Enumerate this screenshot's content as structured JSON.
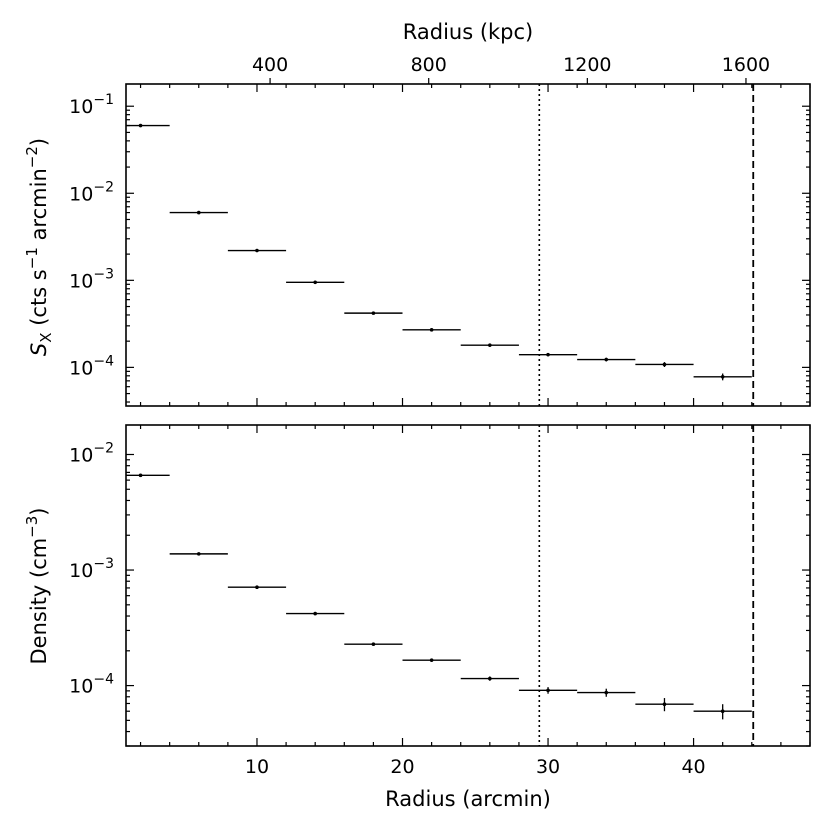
{
  "chart_data": {
    "type": "scatter",
    "x_bins_arcmin": [
      [
        1,
        4
      ],
      [
        4,
        8
      ],
      [
        8,
        12
      ],
      [
        12,
        16
      ],
      [
        16,
        20
      ],
      [
        20,
        24
      ],
      [
        24,
        28
      ],
      [
        28,
        32
      ],
      [
        32,
        36
      ],
      [
        36,
        40
      ],
      [
        40,
        44
      ]
    ],
    "x_centers_arcmin": [
      2,
      6,
      10,
      14,
      18,
      22,
      26,
      30,
      34,
      38,
      42
    ],
    "xlim": [
      1,
      48
    ],
    "xlabel": "Radius (arcmin)",
    "xticks": [
      "10",
      "20",
      "30",
      "40"
    ],
    "xtick_values": [
      10,
      20,
      30,
      40
    ],
    "top_axis": {
      "label": "Radius (kpc)",
      "ticks": [
        "400",
        "800",
        "1200",
        "1600"
      ],
      "tick_positions_arcmin": [
        10.9,
        21.8,
        32.7,
        43.6
      ]
    },
    "vlines": [
      {
        "x": 29.4,
        "style": "dotted"
      },
      {
        "x": 44.1,
        "style": "dashed"
      }
    ],
    "panels": [
      {
        "ylabel_main": "S",
        "ylabel_sub": "X",
        "ylabel_rest": " (cts s",
        "ylabel_sup1": "−1",
        "ylabel_mid": " arcmin",
        "ylabel_sup2": "−2",
        "ylabel_end": ")",
        "yscale": "log",
        "ylim": [
          3.6e-05,
          0.18
        ],
        "yticks": [
          {
            "base": "10",
            "exp": "−1",
            "value": 0.1
          },
          {
            "base": "10",
            "exp": "−2",
            "value": 0.01
          },
          {
            "base": "10",
            "exp": "−3",
            "value": 0.001
          },
          {
            "base": "10",
            "exp": "−4",
            "value": 0.0001
          }
        ],
        "values": [
          0.06,
          0.006,
          0.0022,
          0.00095,
          0.00042,
          0.00027,
          0.00018,
          0.00014,
          0.000123,
          0.000108,
          7.8e-05
        ],
        "errors": [
          0.002,
          0.0002,
          6e-05,
          3e-05,
          1.5e-05,
          1e-05,
          7e-06,
          6e-06,
          6e-06,
          7e-06,
          7e-06
        ]
      },
      {
        "ylabel_main": "Density (cm",
        "ylabel_sup": "−3",
        "ylabel_end": ")",
        "yscale": "log",
        "ylim": [
          3e-05,
          0.018
        ],
        "yticks": [
          {
            "base": "10",
            "exp": "−2",
            "value": 0.01
          },
          {
            "base": "10",
            "exp": "−3",
            "value": 0.001
          },
          {
            "base": "10",
            "exp": "−4",
            "value": 0.0001
          }
        ],
        "values": [
          0.0066,
          0.00138,
          0.00071,
          0.00042,
          0.000228,
          0.000166,
          0.000115,
          9.1e-05,
          8.7e-05,
          6.9e-05,
          6e-05
        ],
        "errors": [
          0.0001,
          3e-05,
          1e-05,
          6e-06,
          4e-06,
          4e-06,
          5e-06,
          6e-06,
          7e-06,
          9e-06,
          9e-06
        ]
      }
    ]
  }
}
